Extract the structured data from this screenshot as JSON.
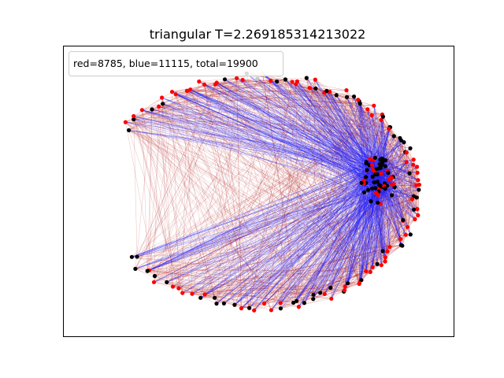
{
  "chart_data": {
    "type": "network",
    "title": "triangular T=2.269185314213022",
    "annotation": "red=8785, blue=11115, total=19900",
    "xticks": [],
    "yticks": [],
    "grid": false,
    "legend_position": "top-left",
    "counts": {
      "red": 8785,
      "blue": 11115,
      "total": 19900
    },
    "colors": {
      "red_edge": "#b01818",
      "blue_edge": "#2020ff",
      "node_red": "#ff0000",
      "node_black": "#000000",
      "node_grey": "#c8c8c8"
    }
  }
}
